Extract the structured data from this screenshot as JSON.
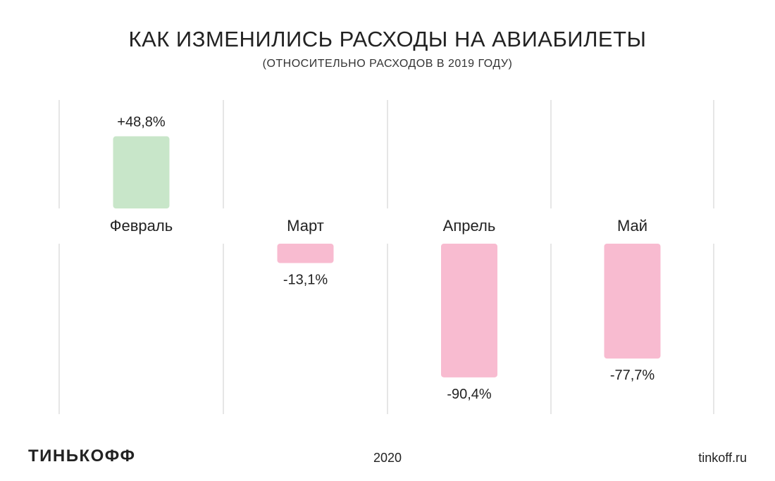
{
  "header": {
    "title": "КАК ИЗМЕНИЛИСЬ РАСХОДЫ НА АВИАБИЛЕТЫ",
    "subtitle": "(ОТНОСИТЕЛЬНО РАСХОДОВ В 2019 ГОДУ)"
  },
  "footer": {
    "logo": "ТИНЬКОФФ",
    "year": "2020",
    "site": "tinkoff.ru"
  },
  "colors": {
    "positive": "#c8e6c9",
    "negative": "#f8bbd0",
    "gridline": "#dddddd",
    "text": "#222222"
  },
  "chart_data": {
    "type": "bar",
    "categories": [
      "Февраль",
      "Март",
      "Апрель",
      "Май"
    ],
    "values": [
      48.8,
      -13.1,
      -90.4,
      -77.7
    ],
    "value_labels": [
      "+48,8%",
      "-13,1%",
      "-90,4%",
      "-77,7%"
    ],
    "unit": "%",
    "ylim": [
      -100,
      50
    ],
    "grid": true
  }
}
